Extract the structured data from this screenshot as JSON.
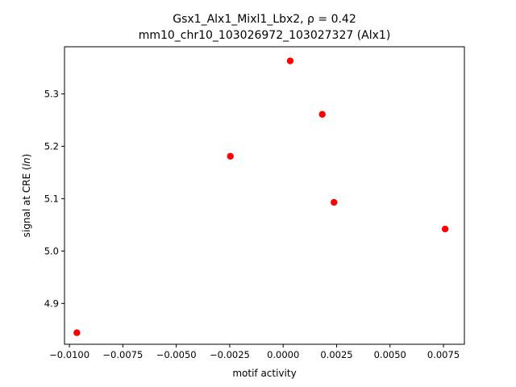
{
  "chart_data": {
    "type": "scatter",
    "title_line1": "Gsx1_Alx1_Mixl1_Lbx2, ρ = 0.42",
    "title_line2": "mm10_chr10_103026972_103027327 (Alx1)",
    "xlabel": "motif activity",
    "ylabel": "signal at CRE (ln)",
    "xlim": [
      -0.01023,
      0.00848
    ],
    "ylim": [
      4.822,
      5.39
    ],
    "x_ticks": [
      -0.01,
      -0.0075,
      -0.005,
      -0.0025,
      0.0,
      0.0025,
      0.005,
      0.0075
    ],
    "x_tick_labels": [
      "−0.0100",
      "−0.0075",
      "−0.0050",
      "−0.0025",
      "0.0000",
      "0.0025",
      "0.0050",
      "0.0075"
    ],
    "y_ticks": [
      4.9,
      5.0,
      5.1,
      5.2,
      5.3
    ],
    "y_tick_labels": [
      "4.9",
      "5.0",
      "5.1",
      "5.2",
      "5.3"
    ],
    "grid": false,
    "marker_color": "#ff0000",
    "points": [
      {
        "x": -0.00965,
        "y": 4.844
      },
      {
        "x": -0.00247,
        "y": 5.181
      },
      {
        "x": 0.00033,
        "y": 5.363
      },
      {
        "x": 0.00183,
        "y": 5.261
      },
      {
        "x": 0.00238,
        "y": 5.093
      },
      {
        "x": 0.00758,
        "y": 5.042
      }
    ]
  }
}
